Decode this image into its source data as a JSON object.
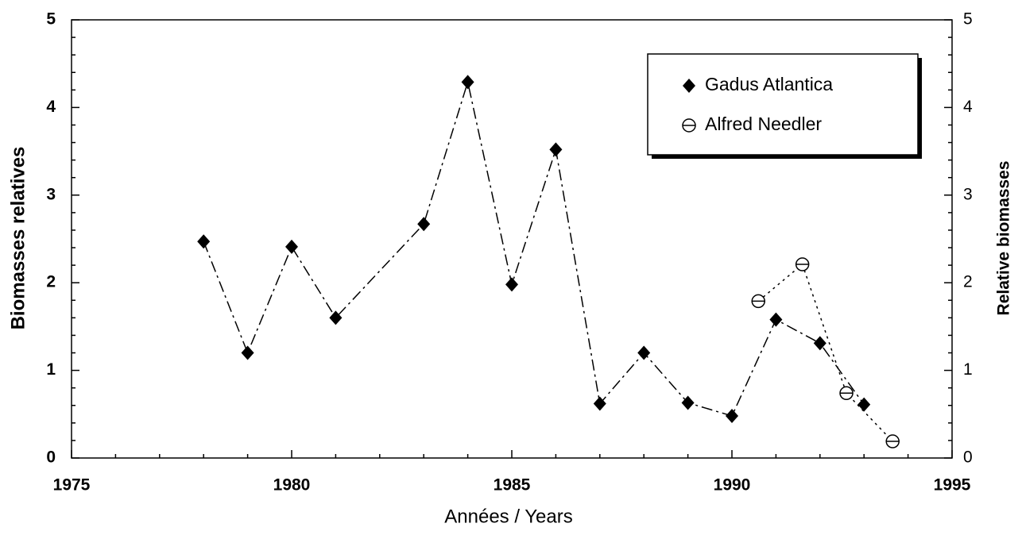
{
  "chart_data": {
    "type": "line",
    "xlabel": "Années / Years",
    "ylabel": "Biomasses relatives",
    "y2label": "Relative biomasses",
    "xlim": [
      1975,
      1995
    ],
    "xticks": [
      1975,
      1980,
      1985,
      1990,
      1995
    ],
    "ylim": [
      0,
      5
    ],
    "yticks": [
      0,
      1,
      2,
      3,
      4,
      5
    ],
    "y2lim": [
      0,
      5
    ],
    "y2ticks": [
      0,
      1,
      2,
      3,
      4,
      5
    ],
    "legend": "upper right",
    "series": [
      {
        "name": "Gadus Atlantica",
        "color": "#000000",
        "marker": "diamond",
        "x": [
          1978,
          1979,
          1980,
          1981,
          1983,
          1984,
          1985,
          1986,
          1987,
          1988,
          1989,
          1990,
          1991,
          1992,
          1993
        ],
        "values": [
          2.47,
          1.2,
          2.41,
          1.6,
          2.67,
          4.29,
          1.98,
          3.52,
          0.62,
          1.2,
          0.63,
          0.48,
          1.58,
          1.31,
          0.61
        ]
      },
      {
        "name": "Alfred Needler",
        "color": "#000000",
        "marker": "open-circle",
        "x": [
          1990.6,
          1991.6,
          1992.6,
          1993.65
        ],
        "values": [
          1.79,
          2.21,
          0.74,
          0.19
        ]
      }
    ]
  }
}
